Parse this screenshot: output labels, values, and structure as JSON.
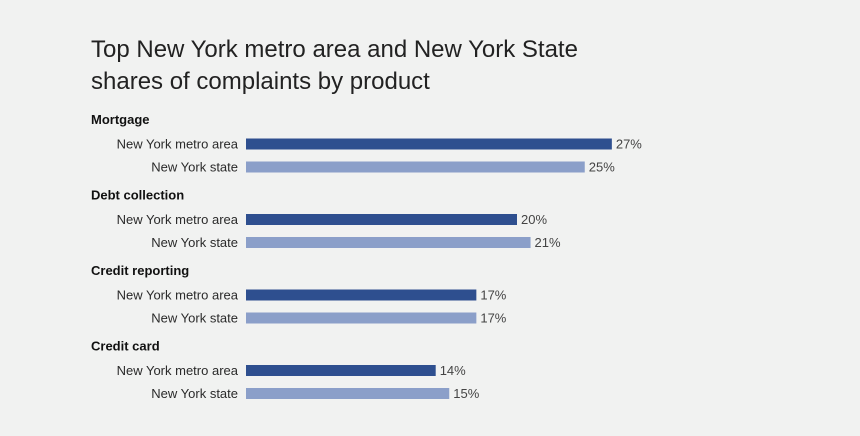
{
  "chart_data": {
    "type": "bar",
    "orientation": "horizontal",
    "title": "Top New York metro area and New York State shares of complaints by product",
    "categories": [
      "Mortgage",
      "Debt collection",
      "Credit reporting",
      "Credit card"
    ],
    "series": [
      {
        "name": "New York metro area",
        "values": [
          27,
          20,
          17,
          14
        ],
        "value_labels": [
          "27%",
          "20%",
          "17%",
          "14%"
        ],
        "color": "#2e4f8f"
      },
      {
        "name": "New York state",
        "values": [
          25,
          21,
          17,
          15
        ],
        "value_labels": [
          "25%",
          "21%",
          "17%",
          "15%"
        ],
        "color": "#8b9fc9"
      }
    ],
    "unit": "%",
    "grid": false,
    "legend": "none"
  }
}
